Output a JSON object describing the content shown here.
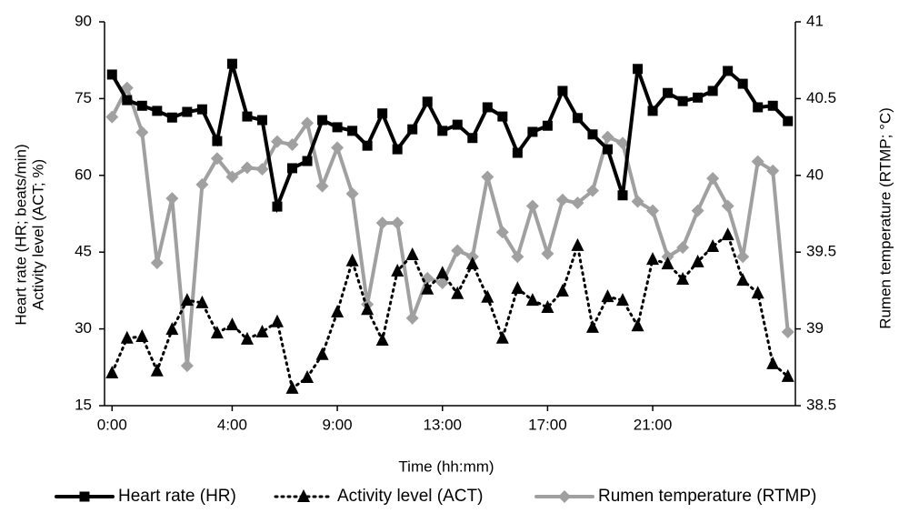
{
  "chart_data": {
    "type": "line",
    "x_label": "Time (hh:mm)",
    "y_label": [
      "Heart rate (HR; beats/min)",
      "Activity level (ACT; %)"
    ],
    "y2_label": "Rumen temperature (RTMP; °C)",
    "categories": [
      "0:00",
      null,
      null,
      null,
      null,
      null,
      null,
      null,
      "4:00",
      null,
      null,
      null,
      null,
      null,
      null,
      "9:00",
      null,
      null,
      null,
      null,
      null,
      null,
      "13:00",
      null,
      null,
      null,
      null,
      null,
      null,
      "17:00",
      null,
      null,
      null,
      null,
      null,
      null,
      "21:00",
      null,
      null,
      null,
      null,
      null,
      null,
      null,
      null,
      null
    ],
    "ylim": [
      15,
      90
    ],
    "yticks": [
      15,
      30,
      45,
      60,
      75,
      90
    ],
    "y2lim": [
      38.5,
      41
    ],
    "y2ticks": [
      38.5,
      39,
      39.5,
      40,
      40.5,
      41
    ],
    "grid": false,
    "legend": "bottom",
    "series": [
      {
        "name": "Heart rate (HR)",
        "color": "#000000",
        "marker": "square",
        "line_style": "solid",
        "values": [
          79.7,
          74.7,
          73.6,
          72.6,
          71.3,
          72.4,
          72.9,
          66.7,
          81.8,
          71.5,
          70.8,
          53.9,
          61.4,
          62.8,
          70.8,
          69.4,
          68.7,
          65.8,
          72.1,
          65.1,
          69.0,
          74.4,
          68.7,
          69.9,
          67.3,
          73.3,
          71.5,
          64.4,
          68.5,
          69.7,
          76.5,
          71.2,
          68.0,
          65.1,
          56.1,
          80.8,
          72.6,
          76.1,
          74.5,
          75.2,
          76.5,
          80.4,
          77.9,
          73.3,
          73.6,
          70.6
        ]
      },
      {
        "name": "Activity level (ACT)",
        "color": "#000000",
        "marker": "triangle",
        "line_style": "dotted",
        "values": [
          21.4,
          28.2,
          28.5,
          21.8,
          29.9,
          35.6,
          35.1,
          29.2,
          30.8,
          28.0,
          29.4,
          31.4,
          18.4,
          20.5,
          25.0,
          33.3,
          43.3,
          33.8,
          27.8,
          41.3,
          44.5,
          37.8,
          40.9,
          36.9,
          42.7,
          36.2,
          28.2,
          37.9,
          35.6,
          34.2,
          37.4,
          46.3,
          30.3,
          36.3,
          35.6,
          30.6,
          43.6,
          42.7,
          39.7,
          43.1,
          46.1,
          48.4,
          39.5,
          37.0,
          23.2,
          20.7
        ]
      },
      {
        "name": "Rumen temperature (RTMP)",
        "color": "#a0a0a0",
        "marker": "diamond",
        "line_style": "solid",
        "axis": "y2",
        "values": [
          40.38,
          40.57,
          40.28,
          39.43,
          39.85,
          38.76,
          39.94,
          40.11,
          39.99,
          40.05,
          40.04,
          40.22,
          40.2,
          40.34,
          39.93,
          40.18,
          39.88,
          39.16,
          39.69,
          39.69,
          39.07,
          39.33,
          39.3,
          39.51,
          39.47,
          39.99,
          39.63,
          39.47,
          39.8,
          39.49,
          39.84,
          39.82,
          39.9,
          40.25,
          40.21,
          39.83,
          39.77,
          39.47,
          39.53,
          39.77,
          39.98,
          39.8,
          39.47,
          40.09,
          40.03,
          38.98
        ]
      }
    ]
  }
}
